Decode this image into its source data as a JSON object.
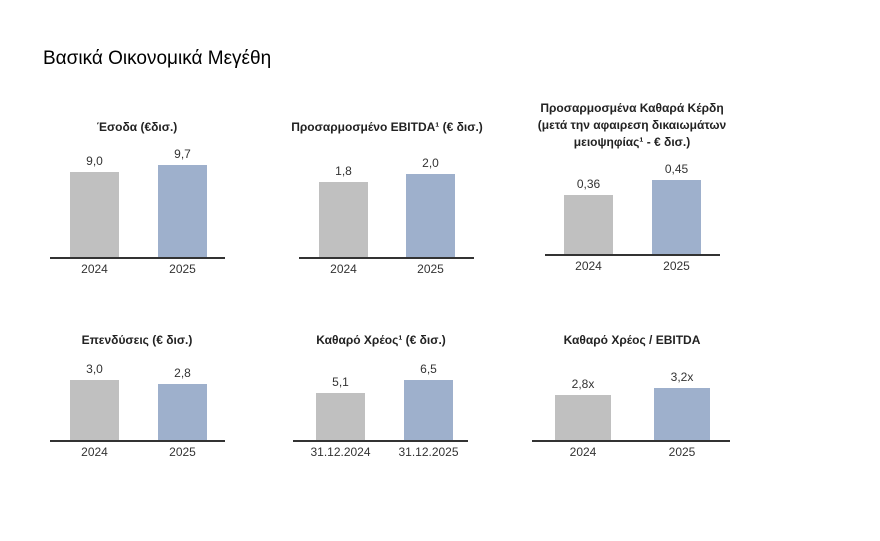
{
  "page_title": "Βασικά Οικονομικά Μεγέθη",
  "colors": {
    "bar_2024": "#c0c0c0",
    "bar_2025": "#9eb0cc",
    "axis": "#333333"
  },
  "chart_data": [
    {
      "type": "bar",
      "title": [
        "Έσοδα (€δισ.)"
      ],
      "categories": [
        "2024",
        "2025"
      ],
      "values": [
        9.0,
        9.7
      ],
      "labels": [
        "9,0",
        "9,7"
      ]
    },
    {
      "type": "bar",
      "title": [
        "Προσαρμοσμένο EBITDA¹ (€ δισ.)"
      ],
      "categories": [
        "2024",
        "2025"
      ],
      "values": [
        1.8,
        2.0
      ],
      "labels": [
        "1,8",
        "2,0"
      ]
    },
    {
      "type": "bar",
      "title": [
        "Προσαρμοσμένα Καθαρά Κέρδη",
        "(μετά την αφαιρεση δικαιωμάτων",
        "μειοψηφίας¹ - € δισ.)"
      ],
      "categories": [
        "2024",
        "2025"
      ],
      "values": [
        0.36,
        0.45
      ],
      "labels": [
        "0,36",
        "0,45"
      ]
    },
    {
      "type": "bar",
      "title": [
        "Επενδύσεις (€ δισ.)"
      ],
      "categories": [
        "2024",
        "2025"
      ],
      "values": [
        3.0,
        2.8
      ],
      "labels": [
        "3,0",
        "2,8"
      ]
    },
    {
      "type": "bar",
      "title": [
        "Καθαρό Χρέος¹ (€ δισ.)"
      ],
      "categories": [
        "31.12.2024",
        "31.12.2025"
      ],
      "values": [
        5.1,
        6.5
      ],
      "labels": [
        "5,1",
        "6,5"
      ]
    },
    {
      "type": "bar",
      "title": [
        "Καθαρό Χρέος / EBITDA"
      ],
      "categories": [
        "2024",
        "2025"
      ],
      "values": [
        2.8,
        3.2
      ],
      "labels": [
        "2,8x",
        "3,2x"
      ]
    }
  ]
}
